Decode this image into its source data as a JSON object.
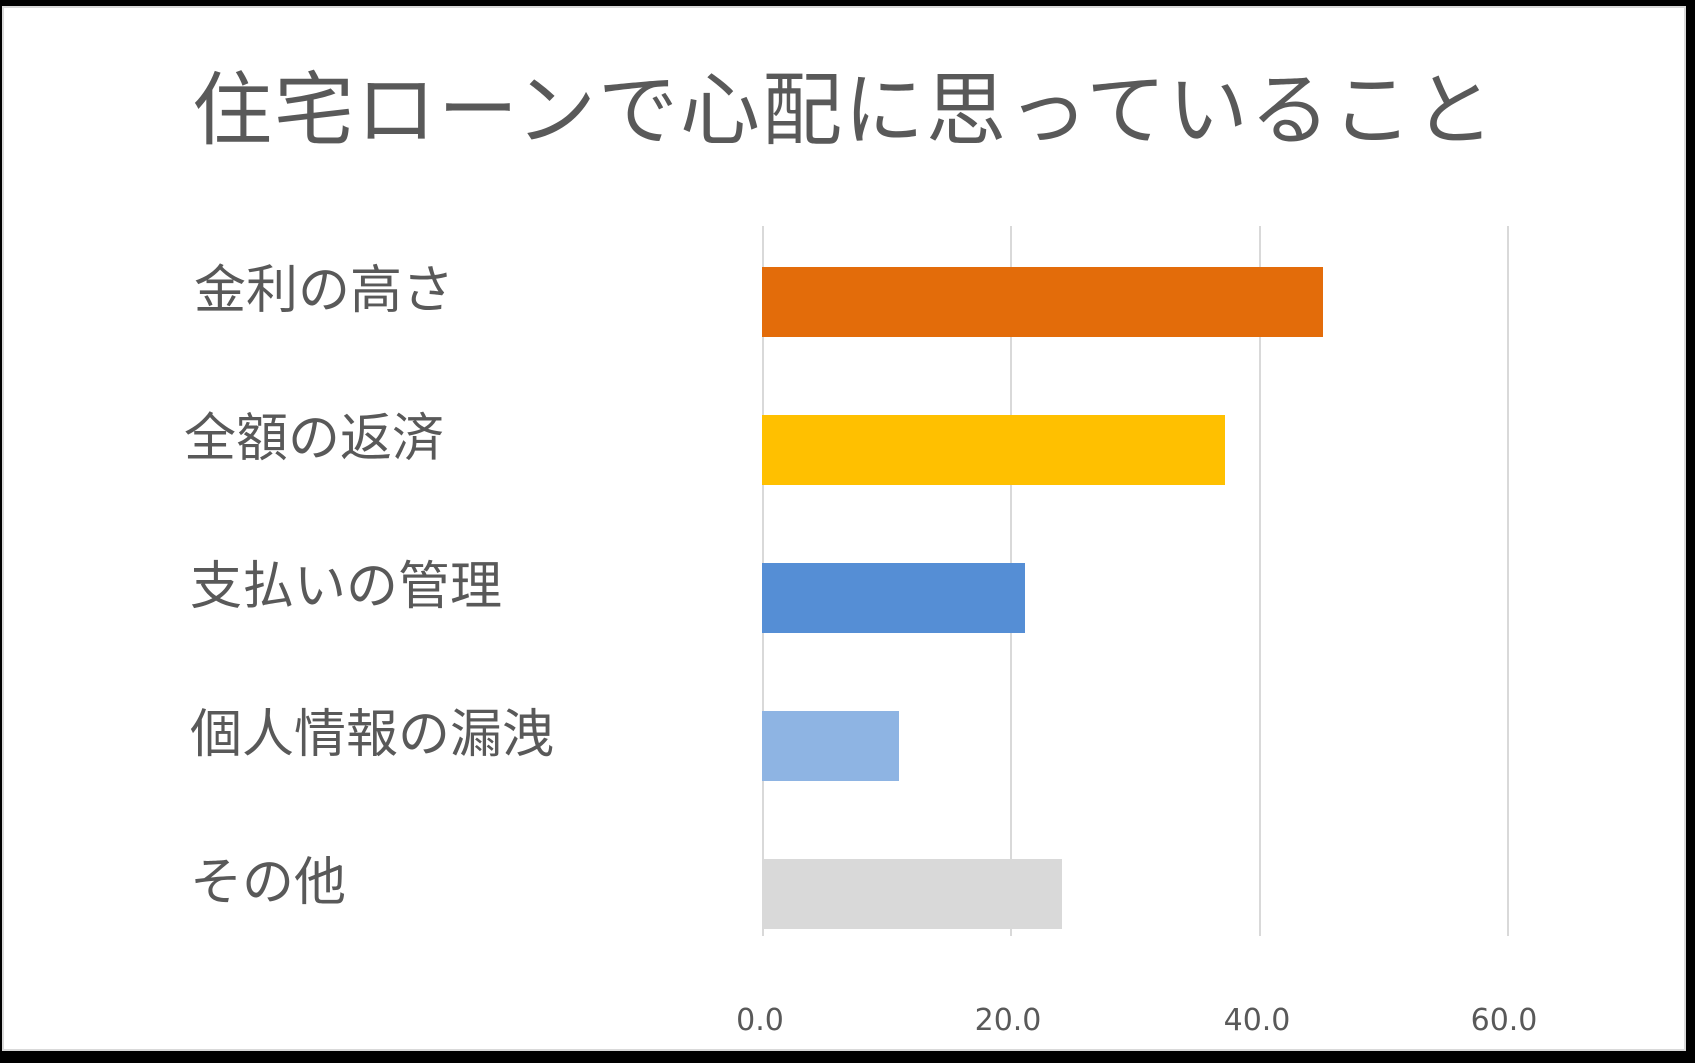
{
  "chart_data": {
    "type": "bar",
    "orientation": "horizontal",
    "title": "住宅ローンで心配に思っていること",
    "categories": [
      "金利の高さ",
      "全額の返済",
      "支払いの管理",
      "個人情報の漏洩",
      "その他"
    ],
    "values": [
      45.2,
      37.3,
      21.2,
      11.0,
      24.2
    ],
    "colors": [
      "#e36c0a",
      "#ffc000",
      "#558ed5",
      "#8eb4e3",
      "#d9d9d9"
    ],
    "xlabel": "",
    "ylabel": "",
    "xlim": [
      0,
      60
    ],
    "x_ticks": [
      "0.0",
      "20.0",
      "40.0",
      "60.0"
    ],
    "grid": true,
    "legend": "none"
  }
}
